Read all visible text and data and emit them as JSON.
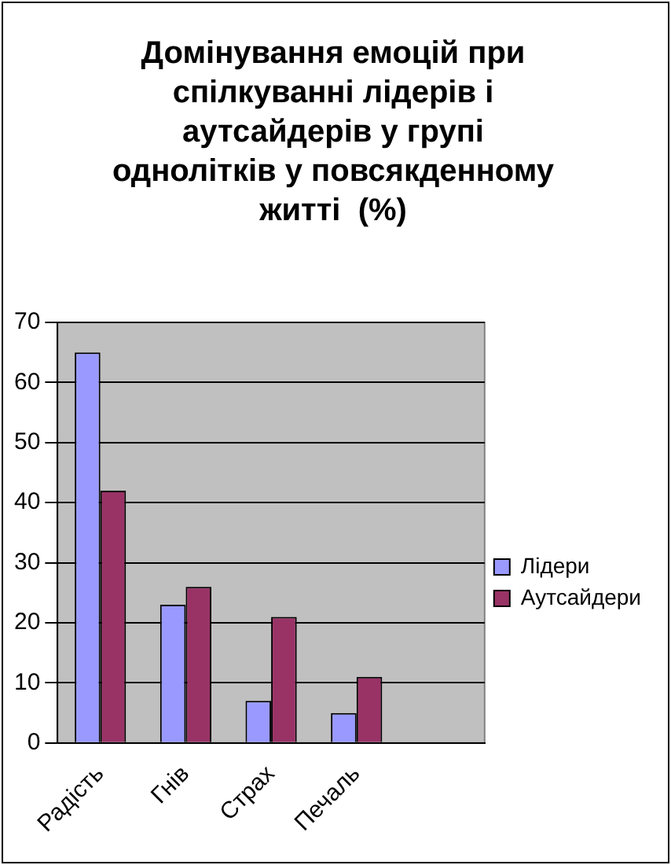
{
  "chart_data": {
    "type": "bar",
    "title": "Домінування емоцій при спілкуванні лідерів і аутсайдерів у групі однолітків у повсякденному житті  (%)",
    "categories": [
      "Радість",
      "Гнів",
      "Страх",
      "Печаль",
      null
    ],
    "series": [
      {
        "name": "Лідери",
        "color": "#9999ff",
        "values": [
          65,
          23,
          7,
          5,
          null
        ]
      },
      {
        "name": "Аутсайдери",
        "color": "#993366",
        "values": [
          42,
          26,
          21,
          11,
          null
        ]
      }
    ],
    "ylim": [
      0,
      70
    ],
    "yticks": [
      0,
      10,
      20,
      30,
      40,
      50,
      60,
      70
    ],
    "grid": "y",
    "legend": "right"
  }
}
